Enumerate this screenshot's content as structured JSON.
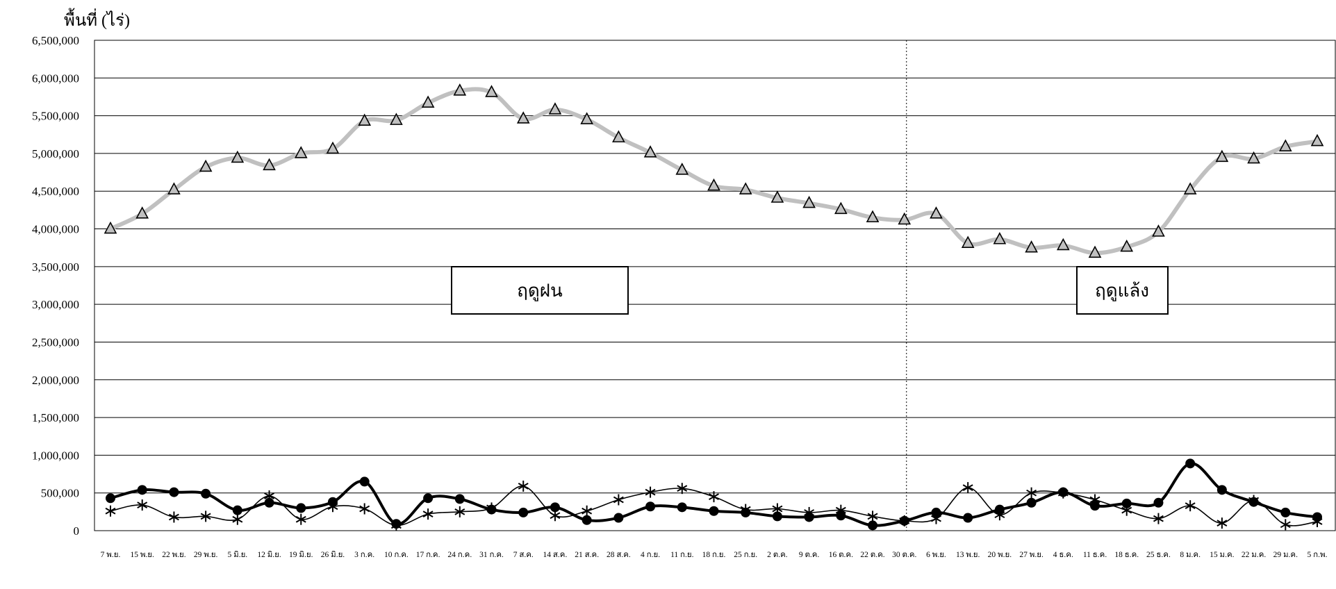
{
  "chart_data": {
    "type": "line",
    "ylabel": "พื้นที่ (ไร่)",
    "ylim": [
      0,
      6500000
    ],
    "ytick_values": [
      0,
      500000,
      1000000,
      1500000,
      2000000,
      2500000,
      3000000,
      3500000,
      4000000,
      4500000,
      5000000,
      5500000,
      6000000,
      6500000
    ],
    "ytick_labels": [
      "0",
      "500,000",
      "1,000,000",
      "1,500,000",
      "2,000,000",
      "2,500,000",
      "3,000,000",
      "3,500,000",
      "4,000,000",
      "4,500,000",
      "5,000,000",
      "5,500,000",
      "6,000,000",
      "6,500,000"
    ],
    "grid": true,
    "legend": "none",
    "categories": [
      "7 พ.ย.",
      "15 พ.ย.",
      "22 พ.ย.",
      "29 พ.ย.",
      "5 มิ.ย.",
      "12 มิ.ย.",
      "19 มิ.ย.",
      "26 มิ.ย.",
      "3 ก.ค.",
      "10 ก.ค.",
      "17 ก.ค.",
      "24 ก.ค.",
      "31 ก.ค.",
      "7 ส.ค.",
      "14 ส.ค.",
      "21 ส.ค.",
      "28 ส.ค.",
      "4 ก.ย.",
      "11 ก.ย.",
      "18 ก.ย.",
      "25 ก.ย.",
      "2 ต.ค.",
      "9 ต.ค.",
      "16 ต.ค.",
      "22 ต.ค.",
      "30 ต.ค.",
      "6 พ.ย.",
      "13 พ.ย.",
      "20 พ.ย.",
      "27 พ.ย.",
      "4 ธ.ค.",
      "11 ธ.ค.",
      "18 ธ.ค.",
      "25 ธ.ค.",
      "8 ม.ค.",
      "15 ม.ค.",
      "22 ม.ค.",
      "29 ม.ค.",
      "5 ก.พ."
    ],
    "series": [
      {
        "marker": "triangle",
        "color": "#c0c0c0",
        "values": [
          4000000,
          4200000,
          4520000,
          4820000,
          4940000,
          4840000,
          5000000,
          5060000,
          5430000,
          5440000,
          5670000,
          5830000,
          5810000,
          5460000,
          5580000,
          5450000,
          5210000,
          5010000,
          4780000,
          4570000,
          4520000,
          4410000,
          4340000,
          4260000,
          4150000,
          4120000,
          4200000,
          3810000,
          3860000,
          3750000,
          3780000,
          3680000,
          3760000,
          3960000,
          4520000,
          4950000,
          4930000,
          5090000,
          5160000
        ]
      },
      {
        "marker": "circle",
        "color": "#000000",
        "values": [
          430000,
          540000,
          510000,
          490000,
          270000,
          370000,
          300000,
          380000,
          650000,
          90000,
          430000,
          420000,
          280000,
          240000,
          310000,
          140000,
          170000,
          320000,
          310000,
          260000,
          240000,
          190000,
          180000,
          200000,
          70000,
          130000,
          240000,
          170000,
          280000,
          370000,
          510000,
          330000,
          360000,
          370000,
          890000,
          540000,
          380000,
          240000,
          180000
        ]
      },
      {
        "marker": "asterisk",
        "color": "#000000",
        "values": [
          260000,
          340000,
          180000,
          190000,
          150000,
          460000,
          150000,
          320000,
          290000,
          70000,
          220000,
          250000,
          300000,
          590000,
          200000,
          260000,
          410000,
          510000,
          560000,
          450000,
          280000,
          290000,
          240000,
          270000,
          190000,
          130000,
          160000,
          570000,
          210000,
          500000,
          500000,
          410000,
          270000,
          160000,
          330000,
          100000,
          400000,
          80000,
          120000
        ]
      }
    ],
    "annotations": {
      "rainy_season": "ฤดูฝน",
      "dry_season": "ฤดูแล้ง"
    },
    "season_divider_after": "30 ต.ค."
  }
}
